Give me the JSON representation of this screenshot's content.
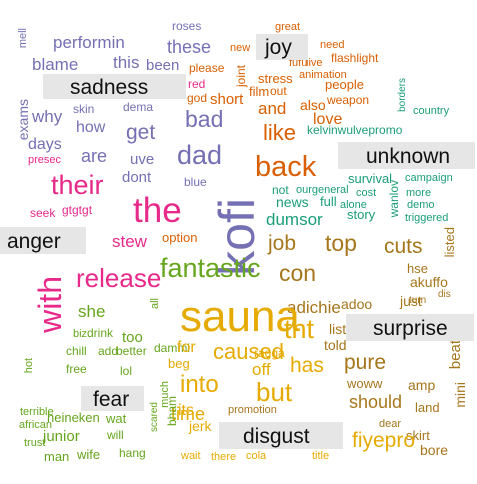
{
  "colors": {
    "sadness": "#7570b3",
    "joy": "#d95f02",
    "unknown": "#666666",
    "anger": "#e7298a",
    "surprise": "#a6761d",
    "fear": "#66a61e",
    "disgust": "#e6ab02",
    "misc": "#1b9e77",
    "label_bg": "#e6e6e6"
  },
  "labels": {
    "sadness": "sadness",
    "joy": "joy",
    "unknown": "unknown",
    "anger": "anger",
    "surprise": "surprise",
    "fear": "fear",
    "disgust": "disgust"
  },
  "words": [
    "roses",
    "mell",
    "performin",
    "these",
    "blame",
    "this",
    "been",
    "why",
    "skin",
    "dema",
    "exams",
    "how",
    "days",
    "are",
    "presec",
    "their",
    "seek",
    "gtgtgt",
    "the",
    "get",
    "uve",
    "dont",
    "dad",
    "blue",
    "bad",
    "stew",
    "option",
    "new",
    "please",
    "god",
    "short",
    "red",
    "joint",
    "film",
    "great",
    "stress",
    "out",
    "need",
    "fufu",
    "live",
    "animation",
    "flashlight",
    "people",
    "weapon",
    "and",
    "also",
    "love",
    "like",
    "back",
    "kelvinwulvepromo",
    "borders",
    "country",
    "campaign",
    "not",
    "ourgeneral",
    "cost",
    "more",
    "alone",
    "demo",
    "triggered",
    "full",
    "news",
    "dumsor",
    "story",
    "survival",
    "wanlov",
    "kofi",
    "job",
    "top",
    "cuts",
    "listed",
    "hse",
    "akuffo",
    "adoo",
    "just",
    "dis",
    "fantastic",
    "con",
    "release",
    "with",
    "adichie",
    "turn",
    "sauna",
    "she",
    "all",
    "biz",
    "drink",
    "chill",
    "add",
    "better",
    "too",
    "dammi",
    "lol",
    "tht",
    "list",
    "told",
    "for",
    "caused",
    "pure",
    "into",
    "beg",
    "off",
    "has",
    "ragga",
    "but",
    "hot",
    "free",
    "time",
    "much",
    "woww",
    "beat",
    "amp",
    "should",
    "mini",
    "land",
    "dear",
    "skirt",
    "bore",
    "terrible",
    "heineken",
    "wat",
    "african",
    "junior",
    "will",
    "trust",
    "man",
    "wife",
    "hang",
    "scared",
    "bham",
    "wait",
    "there",
    "its",
    "jerk",
    "promotion",
    "cola",
    "title",
    "fiyepro"
  ]
}
